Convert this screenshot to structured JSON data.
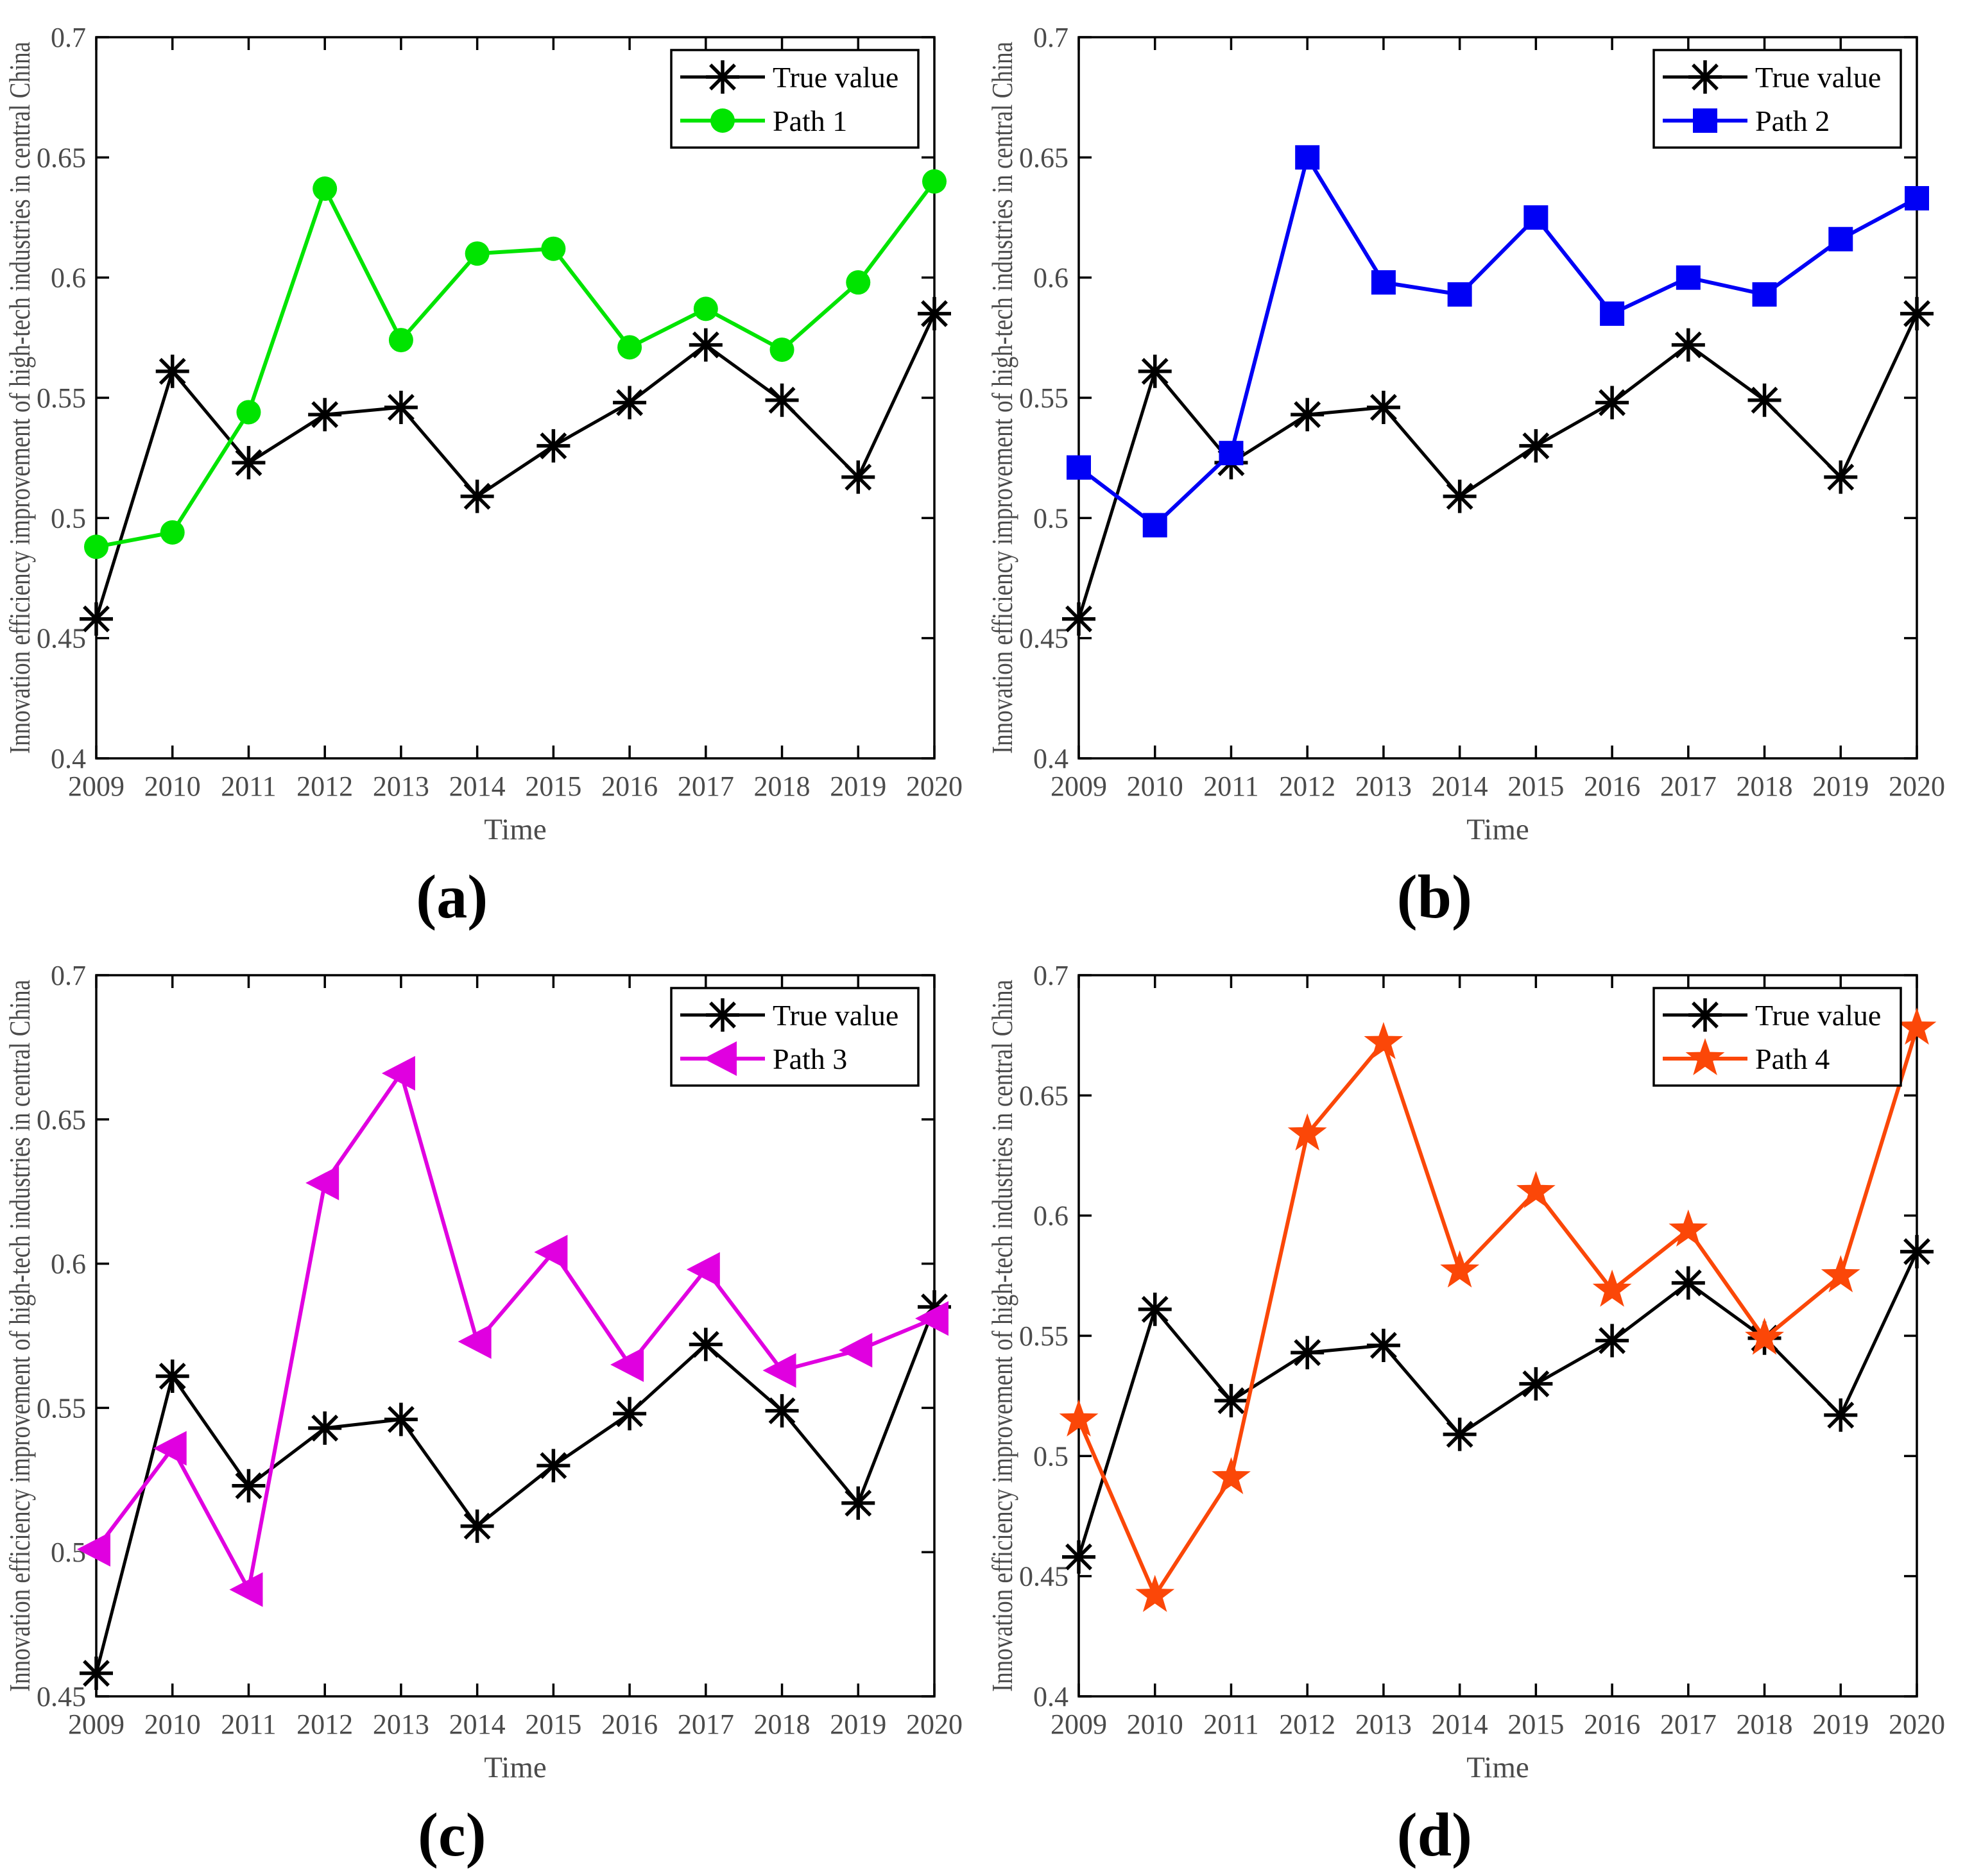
{
  "figure": {
    "background": "#ffffff"
  },
  "style": {
    "axis_color": "#000000",
    "tick_label_color": "#4b4b4b",
    "axis_label_color": "#4b4b4b",
    "legend_border_color": "#000000",
    "legend_text_color": "#000000"
  },
  "chart_data": [
    {
      "type": "line",
      "panel_label": "(a)",
      "xlabel": "Time",
      "ylabel": "Innovation efficiency improvement of high-tech industries in central China",
      "x": [
        2009,
        2010,
        2011,
        2012,
        2013,
        2014,
        2015,
        2016,
        2017,
        2018,
        2019,
        2020
      ],
      "ylim": [
        0.4,
        0.7
      ],
      "ytick_step": 0.05,
      "grid": false,
      "legend_position": "top-right",
      "series": [
        {
          "name": "True value",
          "color": "#000000",
          "marker": "asterisk",
          "values": [
            0.458,
            0.561,
            0.523,
            0.543,
            0.546,
            0.509,
            0.53,
            0.548,
            0.572,
            0.549,
            0.517,
            0.585
          ]
        },
        {
          "name": "Path 1",
          "color": "#00e400",
          "marker": "circle",
          "values": [
            0.488,
            0.494,
            0.544,
            0.637,
            0.574,
            0.61,
            0.612,
            0.571,
            0.587,
            0.57,
            0.598,
            0.64
          ]
        }
      ]
    },
    {
      "type": "line",
      "panel_label": "(b)",
      "xlabel": "Time",
      "ylabel": "Innovation efficiency improvement of high-tech industries in central China",
      "x": [
        2009,
        2010,
        2011,
        2012,
        2013,
        2014,
        2015,
        2016,
        2017,
        2018,
        2019,
        2020
      ],
      "ylim": [
        0.4,
        0.7
      ],
      "ytick_step": 0.05,
      "grid": false,
      "legend_position": "top-right",
      "series": [
        {
          "name": "True value",
          "color": "#000000",
          "marker": "asterisk",
          "values": [
            0.458,
            0.561,
            0.523,
            0.543,
            0.546,
            0.509,
            0.53,
            0.548,
            0.572,
            0.549,
            0.517,
            0.585
          ]
        },
        {
          "name": "Path 2",
          "color": "#0000f5",
          "marker": "square",
          "values": [
            0.521,
            0.497,
            0.527,
            0.65,
            0.598,
            0.593,
            0.625,
            0.585,
            0.6,
            0.593,
            0.616,
            0.633
          ]
        }
      ]
    },
    {
      "type": "line",
      "panel_label": "(c)",
      "xlabel": "Time",
      "ylabel": "Innovation efficiency improvement of high-tech industries in central China",
      "x": [
        2009,
        2010,
        2011,
        2012,
        2013,
        2014,
        2015,
        2016,
        2017,
        2018,
        2019,
        2020
      ],
      "ylim": [
        0.45,
        0.7
      ],
      "ytick_step": 0.05,
      "grid": false,
      "legend_position": "top-right",
      "series": [
        {
          "name": "True value",
          "color": "#000000",
          "marker": "asterisk",
          "values": [
            0.458,
            0.561,
            0.523,
            0.543,
            0.546,
            0.509,
            0.53,
            0.548,
            0.572,
            0.549,
            0.517,
            0.585
          ]
        },
        {
          "name": "Path 3",
          "color": "#e000e0",
          "marker": "triangle-left",
          "values": [
            0.501,
            0.536,
            0.487,
            0.628,
            0.666,
            0.573,
            0.604,
            0.565,
            0.598,
            0.563,
            0.57,
            0.581
          ]
        }
      ]
    },
    {
      "type": "line",
      "panel_label": "(d)",
      "xlabel": "Time",
      "ylabel": "Innovation efficiency improvement of high-tech industries in central China",
      "x": [
        2009,
        2010,
        2011,
        2012,
        2013,
        2014,
        2015,
        2016,
        2017,
        2018,
        2019,
        2020
      ],
      "ylim": [
        0.4,
        0.7
      ],
      "ytick_step": 0.05,
      "grid": false,
      "legend_position": "top-right",
      "series": [
        {
          "name": "True value",
          "color": "#000000",
          "marker": "asterisk",
          "values": [
            0.458,
            0.561,
            0.523,
            0.543,
            0.546,
            0.509,
            0.53,
            0.548,
            0.572,
            0.549,
            0.517,
            0.585
          ]
        },
        {
          "name": "Path 4",
          "color": "#fb4708",
          "marker": "star",
          "values": [
            0.515,
            0.442,
            0.491,
            0.634,
            0.672,
            0.577,
            0.61,
            0.569,
            0.594,
            0.549,
            0.575,
            0.678
          ]
        }
      ]
    }
  ]
}
